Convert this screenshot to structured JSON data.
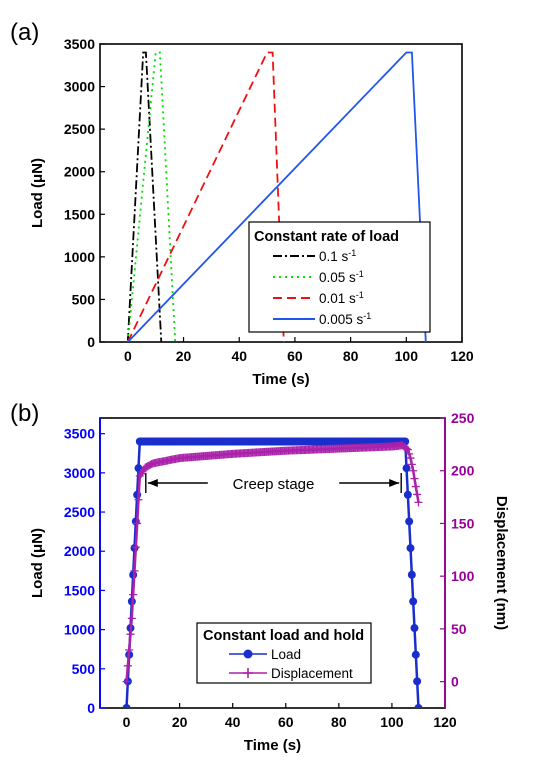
{
  "chart_data": [
    {
      "panel_label": "(a)",
      "type": "line",
      "xlabel": "Time (s)",
      "ylabel": "Load (μN)",
      "xlim": [
        -10,
        120
      ],
      "ylim": [
        0,
        3500
      ],
      "xticks": [
        0,
        20,
        40,
        60,
        80,
        100,
        120
      ],
      "yticks": [
        0,
        500,
        1000,
        1500,
        2000,
        2500,
        3000,
        3500
      ],
      "xtick_labels": [
        "0",
        "20",
        "40",
        "60",
        "80",
        "100",
        "120"
      ],
      "ytick_labels": [
        "0",
        "500",
        "1000",
        "1500",
        "2000",
        "2500",
        "3000",
        "3500"
      ],
      "legend": {
        "title": "Constant rate of load",
        "placement": "lower-right",
        "entries": [
          "0.1 s",
          "0.05 s",
          "0.01 s",
          "0.005 s"
        ],
        "superscript": "-1"
      },
      "series": [
        {
          "name": "0.1 s⁻¹",
          "color": "#000000",
          "dash": "dashdot",
          "x": [
            0,
            5.5,
            6.5,
            12
          ],
          "y": [
            0,
            3400,
            3400,
            0
          ]
        },
        {
          "name": "0.05 s⁻¹",
          "color": "#00dd00",
          "dash": "dot",
          "x": [
            0,
            10,
            11.5,
            17
          ],
          "y": [
            0,
            3400,
            3400,
            0
          ]
        },
        {
          "name": "0.01 s⁻¹",
          "color": "#ee1111",
          "dash": "dash",
          "x": [
            0,
            50,
            52,
            56
          ],
          "y": [
            0,
            3400,
            3400,
            0
          ]
        },
        {
          "name": "0.005 s⁻¹",
          "color": "#2255ee",
          "dash": "solid",
          "x": [
            0,
            100,
            102,
            107
          ],
          "y": [
            0,
            3400,
            3400,
            0
          ]
        }
      ]
    },
    {
      "panel_label": "(b)",
      "type": "line",
      "xlabel": "Time (s)",
      "ylabel": "Load (μN)",
      "ylabel_right": "Displacement (nm)",
      "xlim": [
        -10,
        120
      ],
      "ylim": [
        0,
        3700
      ],
      "ylim_right": [
        -25,
        250
      ],
      "xticks": [
        0,
        20,
        40,
        60,
        80,
        100,
        120
      ],
      "yticks": [
        0,
        500,
        1000,
        1500,
        2000,
        2500,
        3000,
        3500
      ],
      "yticks_right": [
        0,
        50,
        100,
        150,
        200,
        250
      ],
      "xtick_labels": [
        "0",
        "20",
        "40",
        "60",
        "80",
        "100",
        "120"
      ],
      "ytick_labels": [
        "0",
        "500",
        "1000",
        "1500",
        "2000",
        "2500",
        "3000",
        "3500"
      ],
      "ytick_labels_right": [
        "0",
        "50",
        "100",
        "150",
        "200",
        "250"
      ],
      "left_axis_color": "#0000ff",
      "right_axis_color": "#990099",
      "annotation": "Creep stage",
      "annotation_span": [
        5,
        105
      ],
      "legend": {
        "title": "Constant  load and hold",
        "placement": "lower-center",
        "entries": [
          "Load",
          "Displacement"
        ]
      },
      "series": [
        {
          "name": "Load",
          "axis": "left",
          "color": "#1a2ecc",
          "marker": "circle",
          "x": [
            0,
            5,
            105,
            110
          ],
          "y": [
            0,
            3400,
            3400,
            0
          ]
        },
        {
          "name": "Displacement",
          "axis": "right",
          "color": "#aa22aa",
          "marker": "plus",
          "x": [
            0,
            2,
            4,
            5,
            7,
            10,
            20,
            40,
            60,
            80,
            100,
            104,
            106,
            107,
            108,
            109,
            110
          ],
          "y": [
            0,
            60,
            150,
            195,
            203,
            207,
            212,
            216,
            219,
            221,
            223,
            224,
            220,
            212,
            200,
            185,
            170
          ]
        }
      ]
    }
  ]
}
